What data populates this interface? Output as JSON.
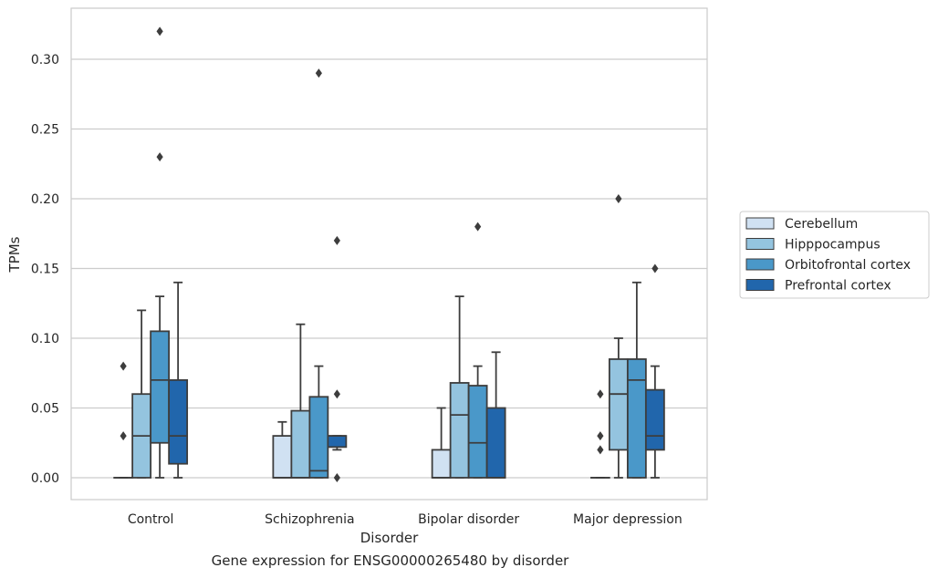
{
  "caption": "Gene expression for ENSG00000265480 by disorder",
  "chart_data": {
    "type": "box",
    "xlabel": "Disorder",
    "ylabel": "TPMs",
    "categories": [
      "Control",
      "Schizophrenia",
      "Bipolar disorder",
      "Major depression"
    ],
    "ylim": [
      -0.016,
      0.337
    ],
    "yticks": [
      0.0,
      0.05,
      0.1,
      0.15,
      0.2,
      0.25,
      0.3
    ],
    "ytick_labels": [
      "0.00",
      "0.05",
      "0.10",
      "0.15",
      "0.20",
      "0.25",
      "0.30"
    ],
    "grid": "horizontal",
    "legend_position": "right",
    "series": [
      {
        "name": "Cerebellum",
        "color": "#d0e1f2",
        "boxes": [
          {
            "whislo": 0.0,
            "q1": 0.0,
            "med": 0.0,
            "q3": 0.0,
            "whishi": 0.0,
            "fliers": [
              0.03,
              0.08
            ]
          },
          {
            "whislo": 0.0,
            "q1": 0.0,
            "med": 0.0,
            "q3": 0.03,
            "whishi": 0.04,
            "fliers": []
          },
          {
            "whislo": 0.0,
            "q1": 0.0,
            "med": 0.0,
            "q3": 0.02,
            "whishi": 0.05,
            "fliers": []
          },
          {
            "whislo": 0.0,
            "q1": 0.0,
            "med": 0.0,
            "q3": 0.0,
            "whishi": 0.0,
            "fliers": [
              0.02,
              0.03,
              0.06
            ]
          }
        ]
      },
      {
        "name": "Hipppocampus",
        "color": "#94c4df",
        "boxes": [
          {
            "whislo": 0.0,
            "q1": 0.0,
            "med": 0.03,
            "q3": 0.06,
            "whishi": 0.12,
            "fliers": []
          },
          {
            "whislo": 0.0,
            "q1": 0.0,
            "med": 0.0,
            "q3": 0.048,
            "whishi": 0.11,
            "fliers": []
          },
          {
            "whislo": 0.0,
            "q1": 0.0,
            "med": 0.045,
            "q3": 0.068,
            "whishi": 0.13,
            "fliers": []
          },
          {
            "whislo": 0.0,
            "q1": 0.02,
            "med": 0.06,
            "q3": 0.085,
            "whishi": 0.1,
            "fliers": [
              0.2
            ]
          }
        ]
      },
      {
        "name": "Orbitofrontal cortex",
        "color": "#4a98c9",
        "boxes": [
          {
            "whislo": 0.0,
            "q1": 0.025,
            "med": 0.07,
            "q3": 0.105,
            "whishi": 0.13,
            "fliers": [
              0.23,
              0.32
            ]
          },
          {
            "whislo": 0.0,
            "q1": 0.0,
            "med": 0.005,
            "q3": 0.058,
            "whishi": 0.08,
            "fliers": [
              0.29
            ]
          },
          {
            "whislo": 0.0,
            "q1": 0.0,
            "med": 0.025,
            "q3": 0.066,
            "whishi": 0.08,
            "fliers": [
              0.18
            ]
          },
          {
            "whislo": 0.0,
            "q1": 0.0,
            "med": 0.07,
            "q3": 0.085,
            "whishi": 0.14,
            "fliers": []
          }
        ]
      },
      {
        "name": "Prefrontal cortex",
        "color": "#2166ac",
        "boxes": [
          {
            "whislo": 0.0,
            "q1": 0.01,
            "med": 0.03,
            "q3": 0.07,
            "whishi": 0.14,
            "fliers": []
          },
          {
            "whislo": 0.02,
            "q1": 0.022,
            "med": 0.03,
            "q3": 0.03,
            "whishi": 0.03,
            "fliers": [
              0.0,
              0.06,
              0.17
            ]
          },
          {
            "whislo": 0.0,
            "q1": 0.0,
            "med": 0.0,
            "q3": 0.05,
            "whishi": 0.09,
            "fliers": []
          },
          {
            "whislo": 0.0,
            "q1": 0.02,
            "med": 0.03,
            "q3": 0.063,
            "whishi": 0.08,
            "fliers": [
              0.15
            ]
          }
        ]
      }
    ]
  }
}
